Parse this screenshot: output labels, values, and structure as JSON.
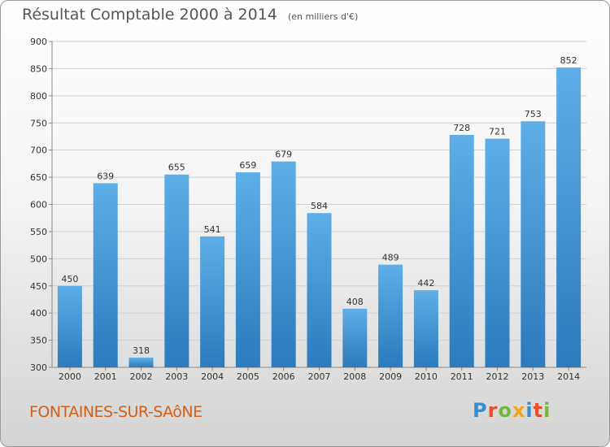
{
  "title": "Résultat Comptable 2000 à 2014",
  "subtitle": "(en milliers d'€)",
  "commune": "FONTAINES-SUR-SAôNE",
  "logo": {
    "letters": [
      "P",
      "r",
      "o",
      "x",
      "i",
      "t",
      "i"
    ],
    "colors": [
      "#3a8ed0",
      "#e94f2c",
      "#6fba3a",
      "#f1a51a",
      "#3a8ed0",
      "#e94f2c",
      "#6fba3a"
    ]
  },
  "colors": {
    "bar_top": "#5eaee8",
    "bar_bottom": "#2b7bbd",
    "grid": "#d0d0d0",
    "axis_text": "#333333"
  },
  "chart_data": {
    "type": "bar",
    "title": "Résultat Comptable 2000 à 2014",
    "subtitle": "(en milliers d'€)",
    "categories": [
      "2000",
      "2001",
      "2002",
      "2003",
      "2004",
      "2005",
      "2006",
      "2007",
      "2008",
      "2009",
      "2010",
      "2011",
      "2012",
      "2013",
      "2014"
    ],
    "values": [
      450,
      639,
      318,
      655,
      541,
      659,
      679,
      584,
      408,
      489,
      442,
      728,
      721,
      753,
      852
    ],
    "ylim": [
      300,
      900
    ],
    "yticks": [
      300,
      350,
      400,
      450,
      500,
      550,
      600,
      650,
      700,
      750,
      800,
      850,
      900
    ],
    "grid": true,
    "data_labels": true
  }
}
